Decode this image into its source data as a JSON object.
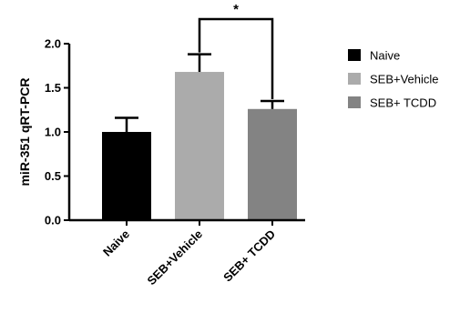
{
  "chart_data": {
    "type": "bar",
    "title": "",
    "xlabel": "",
    "ylabel": "miR-351 qRT-PCR",
    "ylim": [
      0,
      2.0
    ],
    "yticks": [
      0.0,
      0.5,
      1.0,
      1.5,
      2.0
    ],
    "ytick_labels": [
      "0.0",
      "0.5",
      "1.0",
      "1.5",
      "2.0"
    ],
    "categories": [
      "Naive",
      "SEB+Vehicle",
      "SEB+ TCDD"
    ],
    "values": [
      1.0,
      1.68,
      1.26
    ],
    "errors": [
      0.16,
      0.2,
      0.09
    ],
    "colors": [
      "#000000",
      "#ababab",
      "#838383"
    ],
    "grid": false,
    "legend": {
      "placement": "right",
      "entries": [
        {
          "label": "Naive",
          "color": "#000000"
        },
        {
          "label": "SEB+Vehicle",
          "color": "#ababab"
        },
        {
          "label": "SEB+ TCDD",
          "color": "#838383"
        }
      ]
    },
    "annotations": [
      {
        "type": "significance",
        "from": "SEB+Vehicle",
        "to": "SEB+ TCDD",
        "label": "*"
      }
    ]
  }
}
